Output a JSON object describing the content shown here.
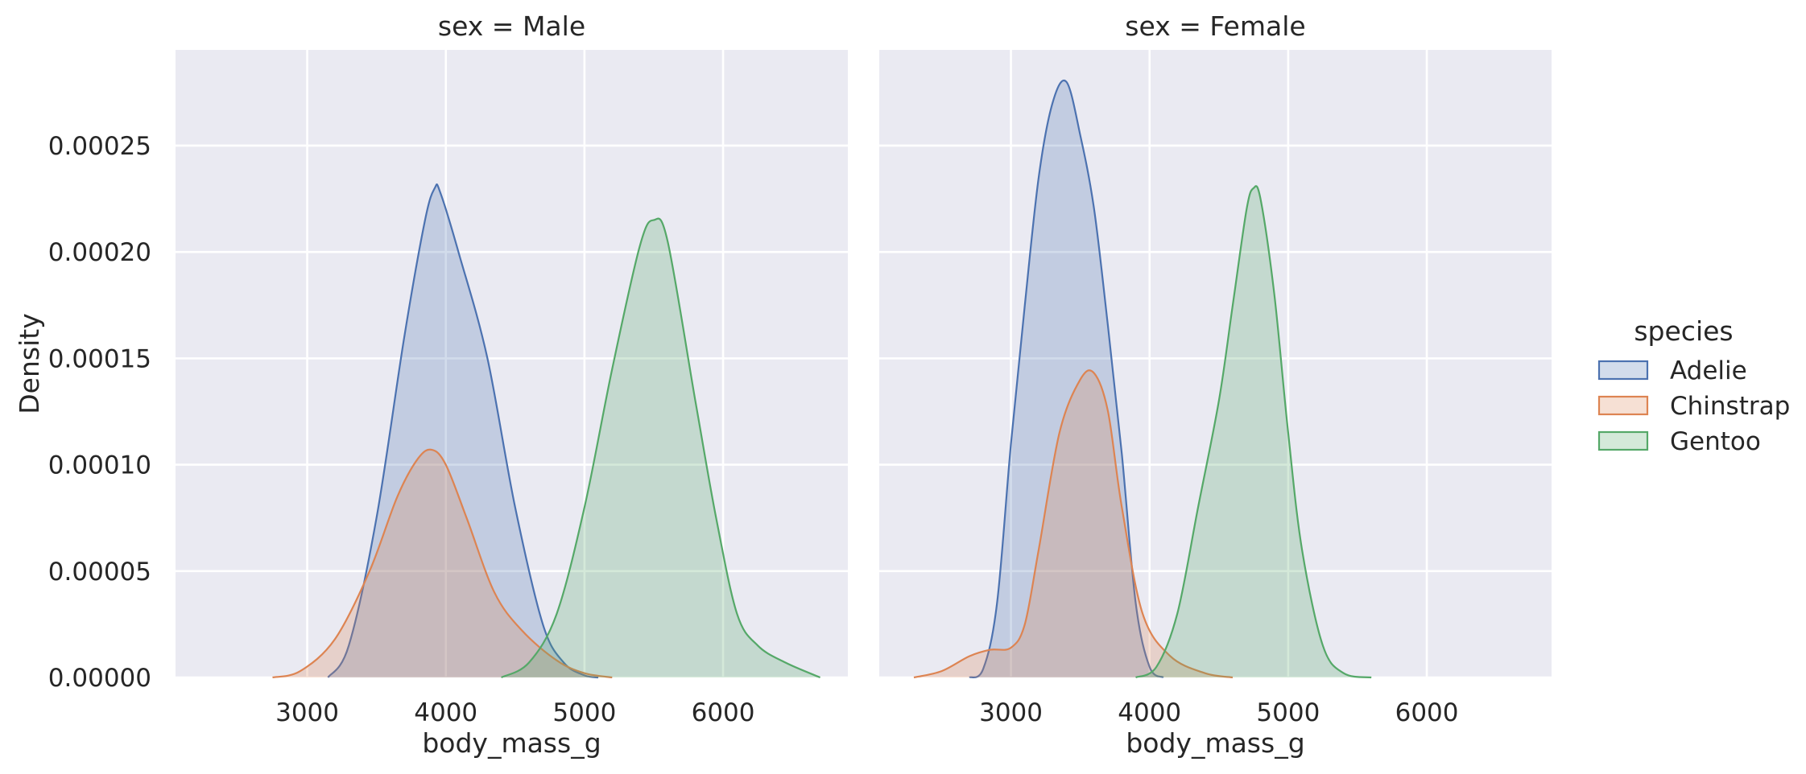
{
  "chart_data": {
    "type": "area",
    "facet_titles": [
      "sex = Male",
      "sex = Female"
    ],
    "xlabel": "body_mass_g",
    "ylabel": "Density",
    "xlim": [
      2050,
      6900
    ],
    "ylim": [
      0,
      0.000295
    ],
    "xticks": [
      3000,
      4000,
      5000,
      6000
    ],
    "yticks": [
      0,
      5e-05,
      0.0001,
      0.00015,
      0.0002,
      0.00025
    ],
    "ytick_labels": [
      "0.00000",
      "0.00005",
      "0.00010",
      "0.00015",
      "0.00020",
      "0.00025"
    ],
    "xtick_labels": [
      "3000",
      "4000",
      "5000",
      "6000"
    ],
    "grid": true,
    "legend": {
      "title": "species",
      "placement": "right",
      "entries": [
        {
          "name": "Adelie",
          "color": "#4c72b0"
        },
        {
          "name": "Chinstrap",
          "color": "#dd8452"
        },
        {
          "name": "Gentoo",
          "color": "#55a868"
        }
      ]
    },
    "panels": [
      {
        "title": "sex = Male",
        "series": [
          {
            "name": "Adelie",
            "color": "#4c72b0",
            "x": [
              3150,
              3300,
              3500,
              3700,
              3850,
              3920,
              3960,
              4100,
              4300,
              4500,
              4700,
              4850,
              5000,
              5100
            ],
            "y": [
              0,
              1.5e-05,
              7.5e-05,
              0.00016,
              0.000215,
              0.00023,
              0.000228,
              0.000198,
              0.00015,
              8e-05,
              2.5e-05,
              7e-06,
              1e-06,
              0
            ]
          },
          {
            "name": "Chinstrap",
            "color": "#dd8452",
            "x": [
              2750,
              2950,
              3200,
              3450,
              3650,
              3800,
              3900,
              4000,
              4150,
              4350,
              4550,
              4800,
              5000,
              5200
            ],
            "y": [
              0,
              3e-06,
              1.8e-05,
              5e-05,
              8.5e-05,
              0.000103,
              0.000107,
              0.0001,
              7.5e-05,
              4e-05,
              2.2e-05,
              8e-06,
              2e-06,
              0
            ]
          },
          {
            "name": "Gentoo",
            "color": "#55a868",
            "x": [
              4400,
              4600,
              4800,
              5000,
              5200,
              5400,
              5500,
              5600,
              5800,
              5950,
              6100,
              6250,
              6450,
              6700
            ],
            "y": [
              0,
              7e-06,
              3e-05,
              8e-05,
              0.000145,
              0.000203,
              0.000215,
              0.000205,
              0.00013,
              7.5e-05,
              3e-05,
              1.5e-05,
              7e-06,
              0
            ]
          }
        ]
      },
      {
        "title": "sex = Female",
        "series": [
          {
            "name": "Adelie",
            "color": "#4c72b0",
            "x": [
              2700,
              2800,
              2900,
              3000,
              3100,
              3200,
              3300,
              3400,
              3500,
              3600,
              3700,
              3800,
              3900,
              4000,
              4100
            ],
            "y": [
              0,
              4e-06,
              3.5e-05,
              0.00011,
              0.000175,
              0.000235,
              0.00027,
              0.00028,
              0.000255,
              0.00022,
              0.000165,
              0.000105,
              3.5e-05,
              5e-06,
              0
            ]
          },
          {
            "name": "Chinstrap",
            "color": "#dd8452",
            "x": [
              2300,
              2500,
              2700,
              2850,
              3000,
              3100,
              3200,
              3350,
              3500,
              3600,
              3700,
              3800,
              3950,
              4150,
              4400,
              4600
            ],
            "y": [
              0,
              3e-06,
              1e-05,
              1.3e-05,
              1.4e-05,
              2.5e-05,
              6e-05,
              0.000115,
              0.00014,
              0.000143,
              0.000125,
              8e-05,
              3e-05,
              1e-05,
              2e-06,
              0
            ]
          },
          {
            "name": "Gentoo",
            "color": "#55a868",
            "x": [
              3900,
              4050,
              4200,
              4350,
              4500,
              4600,
              4700,
              4750,
              4800,
              4900,
              5000,
              5100,
              5250,
              5400,
              5600
            ],
            "y": [
              0,
              5e-06,
              3e-05,
              8e-05,
              0.00013,
              0.000175,
              0.00022,
              0.00023,
              0.000225,
              0.00018,
              0.000115,
              6e-05,
              1.5e-05,
              2e-06,
              0
            ]
          }
        ]
      }
    ]
  }
}
